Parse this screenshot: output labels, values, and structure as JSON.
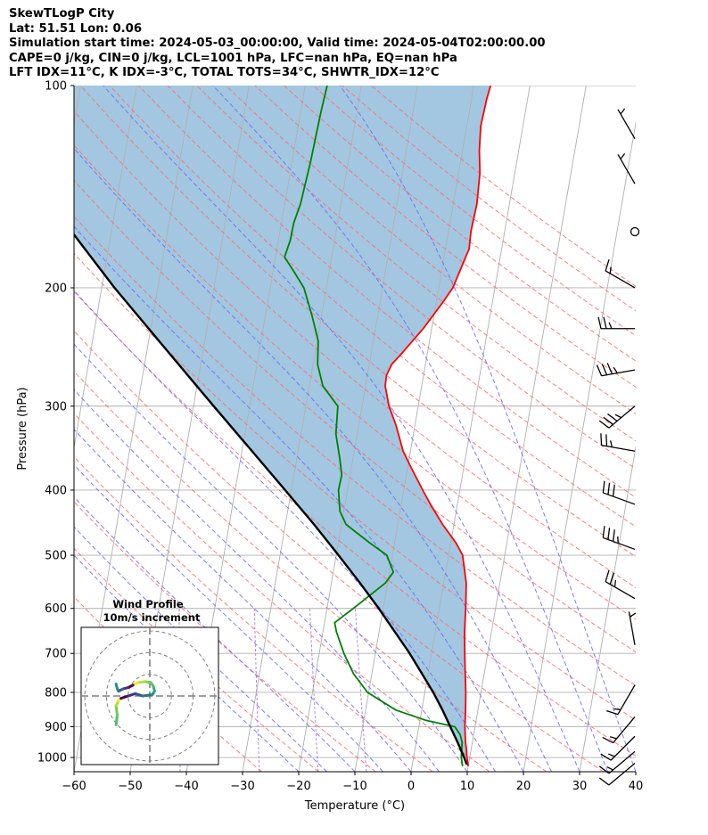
{
  "header": {
    "title": "SkewTLogP City",
    "location": "Lat: 51.51   Lon: 0.06",
    "times": "Simulation start time: 2024-05-03_00:00:00, Valid time: 2024-05-04T02:00:00.00",
    "indices1": "CAPE=0 j/kg, CIN=0 j/kg, LCL=1001 hPa, LFC=nan hPa, EQ=nan hPa",
    "indices2": "LFT IDX=11°C, K IDX=-3°C, TOTAL TOTS=34°C, SHWTR_IDX=12°C"
  },
  "chart_data": {
    "type": "line",
    "subtype": "skew-T log-P",
    "xlabel": "Temperature (°C)",
    "ylabel": "Pressure (hPa)",
    "xlim": [
      -60,
      40
    ],
    "ylim": [
      1050,
      100
    ],
    "y_scale": "log",
    "x_ticks": [
      "−60",
      "−50",
      "−40",
      "−30",
      "−20",
      "−10",
      "0",
      "10",
      "20",
      "30",
      "40"
    ],
    "x_tick_values": [
      -60,
      -50,
      -40,
      -30,
      -20,
      -10,
      0,
      10,
      20,
      30,
      40
    ],
    "y_ticks": [
      "100",
      "200",
      "300",
      "400",
      "500",
      "600",
      "700",
      "800",
      "900",
      "1000"
    ],
    "y_tick_values": [
      100,
      200,
      300,
      400,
      500,
      600,
      700,
      800,
      900,
      1000
    ],
    "grid": true,
    "colors": {
      "temperature": "#ff0000",
      "dewpoint": "#008000",
      "parcel": "#000000",
      "shading": "#a3c7e0",
      "dry_adiabat": "#ff6666",
      "moist_adiabat": "#6666ff",
      "mixing_ratio": "#9966cc",
      "isotherm": "#b0b0b0"
    },
    "series": [
      {
        "role": "temperature",
        "points": [
          [
            1030,
            10
          ],
          [
            1000,
            9.5
          ],
          [
            975,
            9.2
          ],
          [
            950,
            8.8
          ],
          [
            925,
            8.5
          ],
          [
            900,
            8.2
          ],
          [
            850,
            7.8
          ],
          [
            800,
            7.3
          ],
          [
            750,
            6.6
          ],
          [
            700,
            5.9
          ],
          [
            650,
            5.2
          ],
          [
            600,
            4.7
          ],
          [
            550,
            4.0
          ],
          [
            500,
            2.5
          ],
          [
            480,
            1.0
          ],
          [
            450,
            -2.0
          ],
          [
            420,
            -4.8
          ],
          [
            400,
            -6.6
          ],
          [
            370,
            -9.4
          ],
          [
            350,
            -11.3
          ],
          [
            320,
            -13.4
          ],
          [
            300,
            -15.2
          ],
          [
            280,
            -16.5
          ],
          [
            270,
            -16.6
          ],
          [
            260,
            -16.0
          ],
          [
            250,
            -14.5
          ],
          [
            230,
            -11.5
          ],
          [
            210,
            -8.8
          ],
          [
            200,
            -7.5
          ],
          [
            185,
            -6.5
          ],
          [
            175,
            -5.8
          ],
          [
            165,
            -6.0
          ],
          [
            150,
            -5.8
          ],
          [
            135,
            -6.2
          ],
          [
            125,
            -7.0
          ],
          [
            115,
            -7.5
          ],
          [
            105,
            -7.3
          ],
          [
            100,
            -7.0
          ]
        ]
      },
      {
        "role": "dewpoint",
        "points": [
          [
            1030,
            9
          ],
          [
            1000,
            8.5
          ],
          [
            950,
            8.2
          ],
          [
            925,
            7.6
          ],
          [
            900,
            6.4
          ],
          [
            880,
            1.0
          ],
          [
            850,
            -4.6
          ],
          [
            800,
            -10.2
          ],
          [
            750,
            -13.3
          ],
          [
            700,
            -15.6
          ],
          [
            650,
            -17.6
          ],
          [
            630,
            -18.2
          ],
          [
            600,
            -15.3
          ],
          [
            550,
            -10.4
          ],
          [
            530,
            -9.3
          ],
          [
            500,
            -11.0
          ],
          [
            480,
            -14.3
          ],
          [
            450,
            -19.2
          ],
          [
            430,
            -20.7
          ],
          [
            400,
            -21.6
          ],
          [
            380,
            -21.5
          ],
          [
            360,
            -22.3
          ],
          [
            330,
            -23.8
          ],
          [
            300,
            -24.3
          ],
          [
            280,
            -27.6
          ],
          [
            260,
            -29.2
          ],
          [
            240,
            -29.8
          ],
          [
            220,
            -31.7
          ],
          [
            200,
            -34.0
          ],
          [
            190,
            -36.1
          ],
          [
            180,
            -38.4
          ],
          [
            170,
            -37.9
          ],
          [
            160,
            -37.8
          ],
          [
            150,
            -37.2
          ],
          [
            130,
            -36.7
          ],
          [
            110,
            -36.4
          ],
          [
            100,
            -36.1
          ]
        ]
      },
      {
        "role": "parcel",
        "points": [
          [
            1025,
            9.7
          ],
          [
            1000,
            9.0
          ],
          [
            950,
            7.4
          ],
          [
            900,
            5.6
          ],
          [
            850,
            3.7
          ],
          [
            800,
            1.5
          ],
          [
            750,
            -1.1
          ],
          [
            700,
            -3.9
          ],
          [
            650,
            -7.2
          ],
          [
            600,
            -10.8
          ],
          [
            550,
            -14.9
          ],
          [
            500,
            -19.6
          ],
          [
            450,
            -24.9
          ],
          [
            400,
            -31.1
          ],
          [
            350,
            -38.2
          ],
          [
            300,
            -46.4
          ],
          [
            250,
            -56.0
          ],
          [
            200,
            -67.7
          ],
          [
            150,
            -81.7
          ],
          [
            100,
            -99.0
          ]
        ]
      }
    ],
    "wind_barbs": [
      {
        "p": 120,
        "speed_kt": 5,
        "dir": 330
      },
      {
        "p": 140,
        "speed_kt": 5,
        "dir": 330
      },
      {
        "p": 165,
        "speed_kt": 0,
        "dir": 0
      },
      {
        "p": 200,
        "speed_kt": 15,
        "dir": 300
      },
      {
        "p": 230,
        "speed_kt": 25,
        "dir": 270
      },
      {
        "p": 265,
        "speed_kt": 35,
        "dir": 260
      },
      {
        "p": 300,
        "speed_kt": 35,
        "dir": 230
      },
      {
        "p": 350,
        "speed_kt": 25,
        "dir": 280
      },
      {
        "p": 420,
        "speed_kt": 30,
        "dir": 290
      },
      {
        "p": 490,
        "speed_kt": 35,
        "dir": 290
      },
      {
        "p": 580,
        "speed_kt": 25,
        "dir": 300
      },
      {
        "p": 680,
        "speed_kt": 5,
        "dir": 350
      },
      {
        "p": 780,
        "speed_kt": 15,
        "dir": 210
      },
      {
        "p": 870,
        "speed_kt": 15,
        "dir": 220
      },
      {
        "p": 930,
        "speed_kt": 15,
        "dir": 225
      },
      {
        "p": 980,
        "speed_kt": 15,
        "dir": 230
      },
      {
        "p": 1020,
        "speed_kt": 10,
        "dir": 230
      }
    ],
    "hodograph": {
      "title": "Wind Profile",
      "subtitle": "10m/s increment",
      "rings": [
        10,
        20,
        30
      ],
      "trace_u": [
        -14,
        -13.5,
        -14,
        -13,
        -12,
        -9,
        -6,
        -3,
        1,
        2,
        1.5,
        0.5,
        -2,
        -5,
        -7,
        -9,
        -11,
        -13,
        -13.5,
        -14
      ],
      "trace_v": [
        -12,
        -8,
        -4,
        -2,
        -1,
        0,
        1,
        0,
        0.5,
        2,
        4,
        5.5,
        6,
        5.5,
        4.5,
        3.5,
        3,
        2,
        3,
        5
      ],
      "colors": [
        "#4ac16d",
        "#6ece58",
        "#b5de2b",
        "#fde725",
        "#440154",
        "#472d7b",
        "#3b528b",
        "#2c728e",
        "#21918c",
        "#28ae80"
      ]
    }
  }
}
